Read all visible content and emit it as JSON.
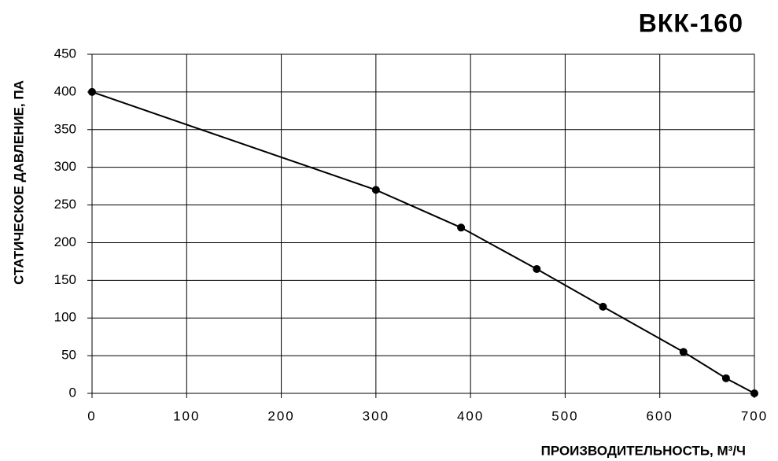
{
  "chart_data": {
    "type": "line",
    "title": "ВКК-160",
    "x_label": "ПРОИЗВОДИТЕЛЬНОСТЬ, М³/Ч",
    "y_label": "СТАТИЧЕСКОЕ ДАВЛЕНИЕ, ПА",
    "x": [
      0,
      300,
      390,
      470,
      540,
      625,
      670,
      700
    ],
    "values": [
      400,
      270,
      220,
      165,
      115,
      55,
      20,
      0
    ],
    "color": "#000000",
    "markers": true,
    "xlim": [
      0,
      700
    ],
    "xticks": [
      0,
      100,
      200,
      300,
      400,
      500,
      600,
      700
    ],
    "ylim": [
      0,
      450
    ],
    "yticks": [
      0,
      50,
      100,
      150,
      200,
      250,
      300,
      350,
      400,
      450
    ],
    "grid": true
  }
}
